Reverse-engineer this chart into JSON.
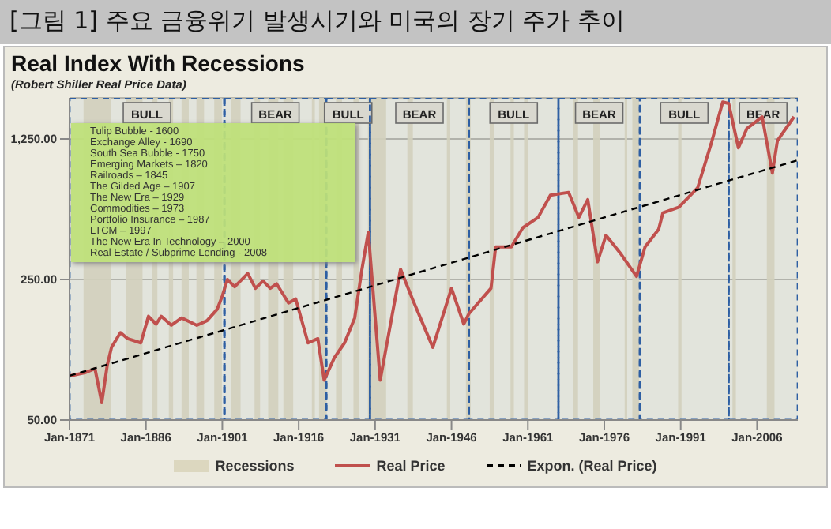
{
  "chart_data": {
    "type": "line",
    "title": "[그림 1] 주요 금융위기 발생시기와 미국의 장기 주가 추이",
    "subtitle": "Real Index With Recessions",
    "annotations": [
      "(Robert Shiller Real Price Data)",
      "Tulip Bubble - 1600",
      "Exchange Alley - 1690",
      "South Sea Bubble - 1750",
      "Emerging Markets – 1820",
      "Railroads – 1845",
      "The Gilded Age – 1907",
      "The New Era – 1929",
      "Commodities – 1973",
      "Portfolio Insurance – 1987",
      "LTCM – 1997",
      "The New Era In Technology – 2000",
      "Real Estate / Subprime Lending - 2008"
    ],
    "series": [
      {
        "name": "Real Price",
        "color": "#c0504d",
        "line_style": "solid",
        "x": [
          "1871-03",
          "1874-01",
          "1876-01",
          "1877-05",
          "1878-06",
          "1879-04",
          "1881-01",
          "1882-06",
          "1885-01",
          "1886-07",
          "1888-01",
          "1889-01",
          "1891-01",
          "1893-01",
          "1896-01",
          "1898-01",
          "1900-01",
          "1901-01",
          "1902-01",
          "1903-06",
          "1906-01",
          "1907-07",
          "1909-01",
          "1910-06",
          "1911-09",
          "1914-01",
          "1915-06",
          "1917-11",
          "1919-10",
          "1921-01",
          "1923-01",
          "1925-01",
          "1927-01",
          "1928-06",
          "1929-09",
          "1932-01",
          "1936-01",
          "1938-05",
          "1942-05",
          "1946-01",
          "1948-06",
          "1949-06",
          "1953-10",
          "1954-09",
          "1957-10",
          "1960-01",
          "1963-01",
          "1965-06",
          "1969-01",
          "1971-01",
          "1972-10",
          "1974-09",
          "1976-05",
          "1979-05",
          "1982-05",
          "1984-01",
          "1986-09",
          "1987-07",
          "1990-09",
          "1994-05",
          "1997-01",
          "1999-04",
          "2000-06",
          "2002-05",
          "2004-01",
          "2007-01",
          "2009-01",
          "2010-01",
          "2013-04"
        ],
        "values": [
          83,
          86,
          90,
          61,
          94,
          115,
          136,
          127,
          121,
          164,
          150,
          164,
          148,
          161,
          148,
          156,
          178,
          207,
          250,
          230,
          268,
          226,
          246,
          226,
          238,
          191,
          200,
          121,
          127,
          79,
          102,
          121,
          161,
          281,
          430,
          79,
          281,
          200,
          115,
          226,
          150,
          169,
          226,
          363,
          363,
          452,
          509,
          656,
          678,
          509,
          624,
          306,
          415,
          333,
          259,
          363,
          444,
          536,
          573,
          715,
          1187,
          1907,
          1877,
          1129,
          1407,
          1610,
          846,
          1227,
          1610
        ]
      },
      {
        "name": "Expon. (Real Price)",
        "color": "#000000",
        "line_style": "dashed",
        "x": [
          "1871-01",
          "2014-01"
        ],
        "values": [
          83,
          980
        ]
      }
    ],
    "xlim": [
      "1871-01",
      "2014-01"
    ],
    "xticks": [
      {
        "value": "1871-01",
        "label": "Jan-1871"
      },
      {
        "value": "1886-01",
        "label": "Jan-1886"
      },
      {
        "value": "1901-01",
        "label": "Jan-1901"
      },
      {
        "value": "1916-01",
        "label": "Jan-1916"
      },
      {
        "value": "1931-01",
        "label": "Jan-1931"
      },
      {
        "value": "1946-01",
        "label": "Jan-1946"
      },
      {
        "value": "1961-01",
        "label": "Jan-1961"
      },
      {
        "value": "1976-01",
        "label": "Jan-1976"
      },
      {
        "value": "1991-01",
        "label": "Jan-1991"
      },
      {
        "value": "2006-01",
        "label": "Jan-2006"
      }
    ],
    "ylim": [
      50,
      2000
    ],
    "yticks": [
      {
        "value": 50,
        "label": "50.00"
      },
      {
        "value": 250,
        "label": "250.00"
      },
      {
        "value": 1250,
        "label": "1,250.00"
      }
    ],
    "log": "y",
    "grid": "y",
    "legend": "bottom",
    "marker": "none",
    "bands": [
      {
        "axis": "x",
        "from": "1873-10",
        "to": "1879-03",
        "label": "Recessions",
        "color": "#dcd7bf"
      },
      {
        "axis": "x",
        "from": "1882-03",
        "to": "1885-05",
        "label": null,
        "color": "#dcd7bf"
      },
      {
        "axis": "x",
        "from": "1887-03",
        "to": "1888-04",
        "label": null,
        "color": "#dcd7bf"
      },
      {
        "axis": "x",
        "from": "1890-07",
        "to": "1891-05",
        "label": null,
        "color": "#dcd7bf"
      },
      {
        "axis": "x",
        "from": "1893-01",
        "to": "1894-06",
        "label": null,
        "color": "#dcd7bf"
      },
      {
        "axis": "x",
        "from": "1895-12",
        "to": "1897-06",
        "label": null,
        "color": "#dcd7bf"
      },
      {
        "axis": "x",
        "from": "1899-06",
        "to": "1900-12",
        "label": null,
        "color": "#dcd7bf"
      },
      {
        "axis": "x",
        "from": "1902-09",
        "to": "1904-08",
        "label": null,
        "color": "#dcd7bf"
      },
      {
        "axis": "x",
        "from": "1907-05",
        "to": "1908-06",
        "label": null,
        "color": "#dcd7bf"
      },
      {
        "axis": "x",
        "from": "1910-01",
        "to": "1912-01",
        "label": null,
        "color": "#dcd7bf"
      },
      {
        "axis": "x",
        "from": "1913-01",
        "to": "1914-12",
        "label": null,
        "color": "#dcd7bf"
      },
      {
        "axis": "x",
        "from": "1918-08",
        "to": "1919-03",
        "label": null,
        "color": "#dcd7bf"
      },
      {
        "axis": "x",
        "from": "1920-01",
        "to": "1921-07",
        "label": null,
        "color": "#dcd7bf"
      },
      {
        "axis": "x",
        "from": "1923-05",
        "to": "1924-07",
        "label": null,
        "color": "#dcd7bf"
      },
      {
        "axis": "x",
        "from": "1926-10",
        "to": "1927-11",
        "label": null,
        "color": "#dcd7bf"
      },
      {
        "axis": "x",
        "from": "1929-08",
        "to": "1933-03",
        "label": null,
        "color": "#dcd7bf"
      },
      {
        "axis": "x",
        "from": "1937-05",
        "to": "1938-06",
        "label": null,
        "color": "#dcd7bf"
      },
      {
        "axis": "x",
        "from": "1945-02",
        "to": "1945-10",
        "label": null,
        "color": "#dcd7bf"
      },
      {
        "axis": "x",
        "from": "1948-11",
        "to": "1949-10",
        "label": null,
        "color": "#dcd7bf"
      },
      {
        "axis": "x",
        "from": "1953-07",
        "to": "1954-05",
        "label": null,
        "color": "#dcd7bf"
      },
      {
        "axis": "x",
        "from": "1957-08",
        "to": "1958-04",
        "label": null,
        "color": "#dcd7bf"
      },
      {
        "axis": "x",
        "from": "1960-04",
        "to": "1961-02",
        "label": null,
        "color": "#dcd7bf"
      },
      {
        "axis": "x",
        "from": "1969-12",
        "to": "1970-11",
        "label": null,
        "color": "#dcd7bf"
      },
      {
        "axis": "x",
        "from": "1973-11",
        "to": "1975-03",
        "label": null,
        "color": "#dcd7bf"
      },
      {
        "axis": "x",
        "from": "1980-01",
        "to": "1980-07",
        "label": null,
        "color": "#dcd7bf"
      },
      {
        "axis": "x",
        "from": "1981-07",
        "to": "1982-11",
        "label": null,
        "color": "#dcd7bf"
      },
      {
        "axis": "x",
        "from": "1990-07",
        "to": "1991-03",
        "label": null,
        "color": "#dcd7bf"
      },
      {
        "axis": "x",
        "from": "2001-03",
        "to": "2001-11",
        "label": null,
        "color": "#dcd7bf"
      },
      {
        "axis": "x",
        "from": "2007-12",
        "to": "2009-06",
        "label": null,
        "color": "#dcd7bf"
      },
      {
        "axis": "x",
        "from": "1871-01",
        "to": "1901-06",
        "label": "BULL",
        "color": "#2e5fa3"
      },
      {
        "axis": "x",
        "from": "1901-06",
        "to": "1921-06",
        "label": "BEAR",
        "color": "#2e5fa3"
      },
      {
        "axis": "x",
        "from": "1921-06",
        "to": "1930-01",
        "label": "BULL",
        "color": "#2e5fa3"
      },
      {
        "axis": "x",
        "from": "1930-01",
        "to": "1949-06",
        "label": "BEAR",
        "color": "#2e5fa3"
      },
      {
        "axis": "x",
        "from": "1949-06",
        "to": "1967-01",
        "label": "BULL",
        "color": "#2e5fa3"
      },
      {
        "axis": "x",
        "from": "1967-01",
        "to": "1983-01",
        "label": "BEAR",
        "color": "#2e5fa3"
      },
      {
        "axis": "x",
        "from": "1983-01",
        "to": "2000-06",
        "label": "BULL",
        "color": "#2e5fa3"
      },
      {
        "axis": "x",
        "from": "2000-06",
        "to": "2014-01",
        "label": "BEAR",
        "color": "#2e5fa3"
      }
    ]
  }
}
